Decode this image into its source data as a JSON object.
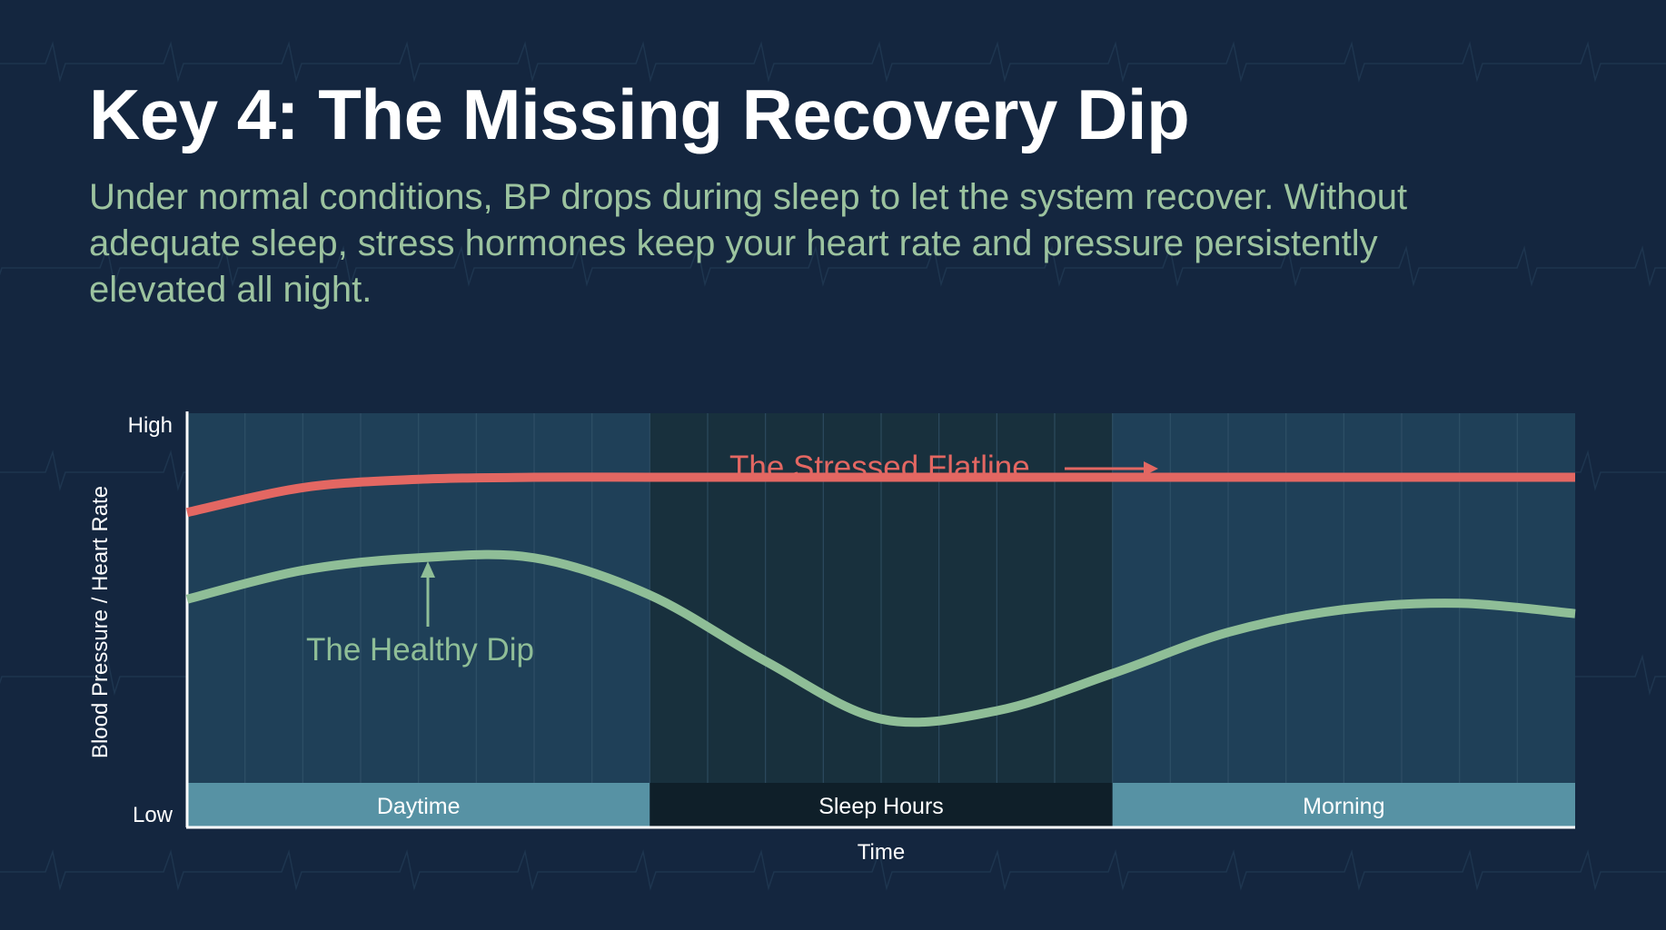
{
  "slide": {
    "title": "Key 4: The Missing Recovery Dip",
    "subtitle": "Under normal conditions, BP drops during sleep to let the system recover. Without adequate sleep, stress hormones keep your heart rate and pressure persistently elevated all night."
  },
  "colors": {
    "background": "#14263f",
    "plot_day": "#1f4058",
    "plot_sleep": "#18303d",
    "band_day": "#5792a4",
    "band_sleep": "#0f1f29",
    "healthy": "#8fbe97",
    "stressed": "#e36762",
    "subtitle": "#9cc39f"
  },
  "chart_data": {
    "type": "line",
    "xlabel": "Time",
    "ylabel": "Blood Pressure / Heart Rate",
    "y_ticks": [
      "High",
      "Low"
    ],
    "ylim": [
      0,
      100
    ],
    "xlim": [
      0,
      24
    ],
    "grid": true,
    "phases": [
      {
        "label": "Daytime",
        "start": 0,
        "end": 8
      },
      {
        "label": "Sleep Hours",
        "start": 8,
        "end": 16
      },
      {
        "label": "Morning",
        "start": 16,
        "end": 24
      }
    ],
    "x": [
      0,
      2,
      4,
      6,
      8,
      10,
      12,
      14,
      16,
      18,
      20,
      22,
      24
    ],
    "series": [
      {
        "name": "The Stressed Flatline",
        "values": [
          76,
          82,
          84,
          84.5,
          84.5,
          84.5,
          84.5,
          84.5,
          84.5,
          84.5,
          84.5,
          84.5,
          84.5
        ]
      },
      {
        "name": "The Healthy Dip",
        "values": [
          55,
          62,
          65,
          65,
          56,
          40,
          26,
          28,
          37,
          47,
          52.5,
          54,
          51.5
        ]
      }
    ],
    "annotations": [
      {
        "text": "The Stressed Flatline",
        "series": "The Stressed Flatline",
        "arrow": "right"
      },
      {
        "text": "The Healthy Dip",
        "series": "The Healthy Dip",
        "arrow": "up"
      }
    ]
  }
}
